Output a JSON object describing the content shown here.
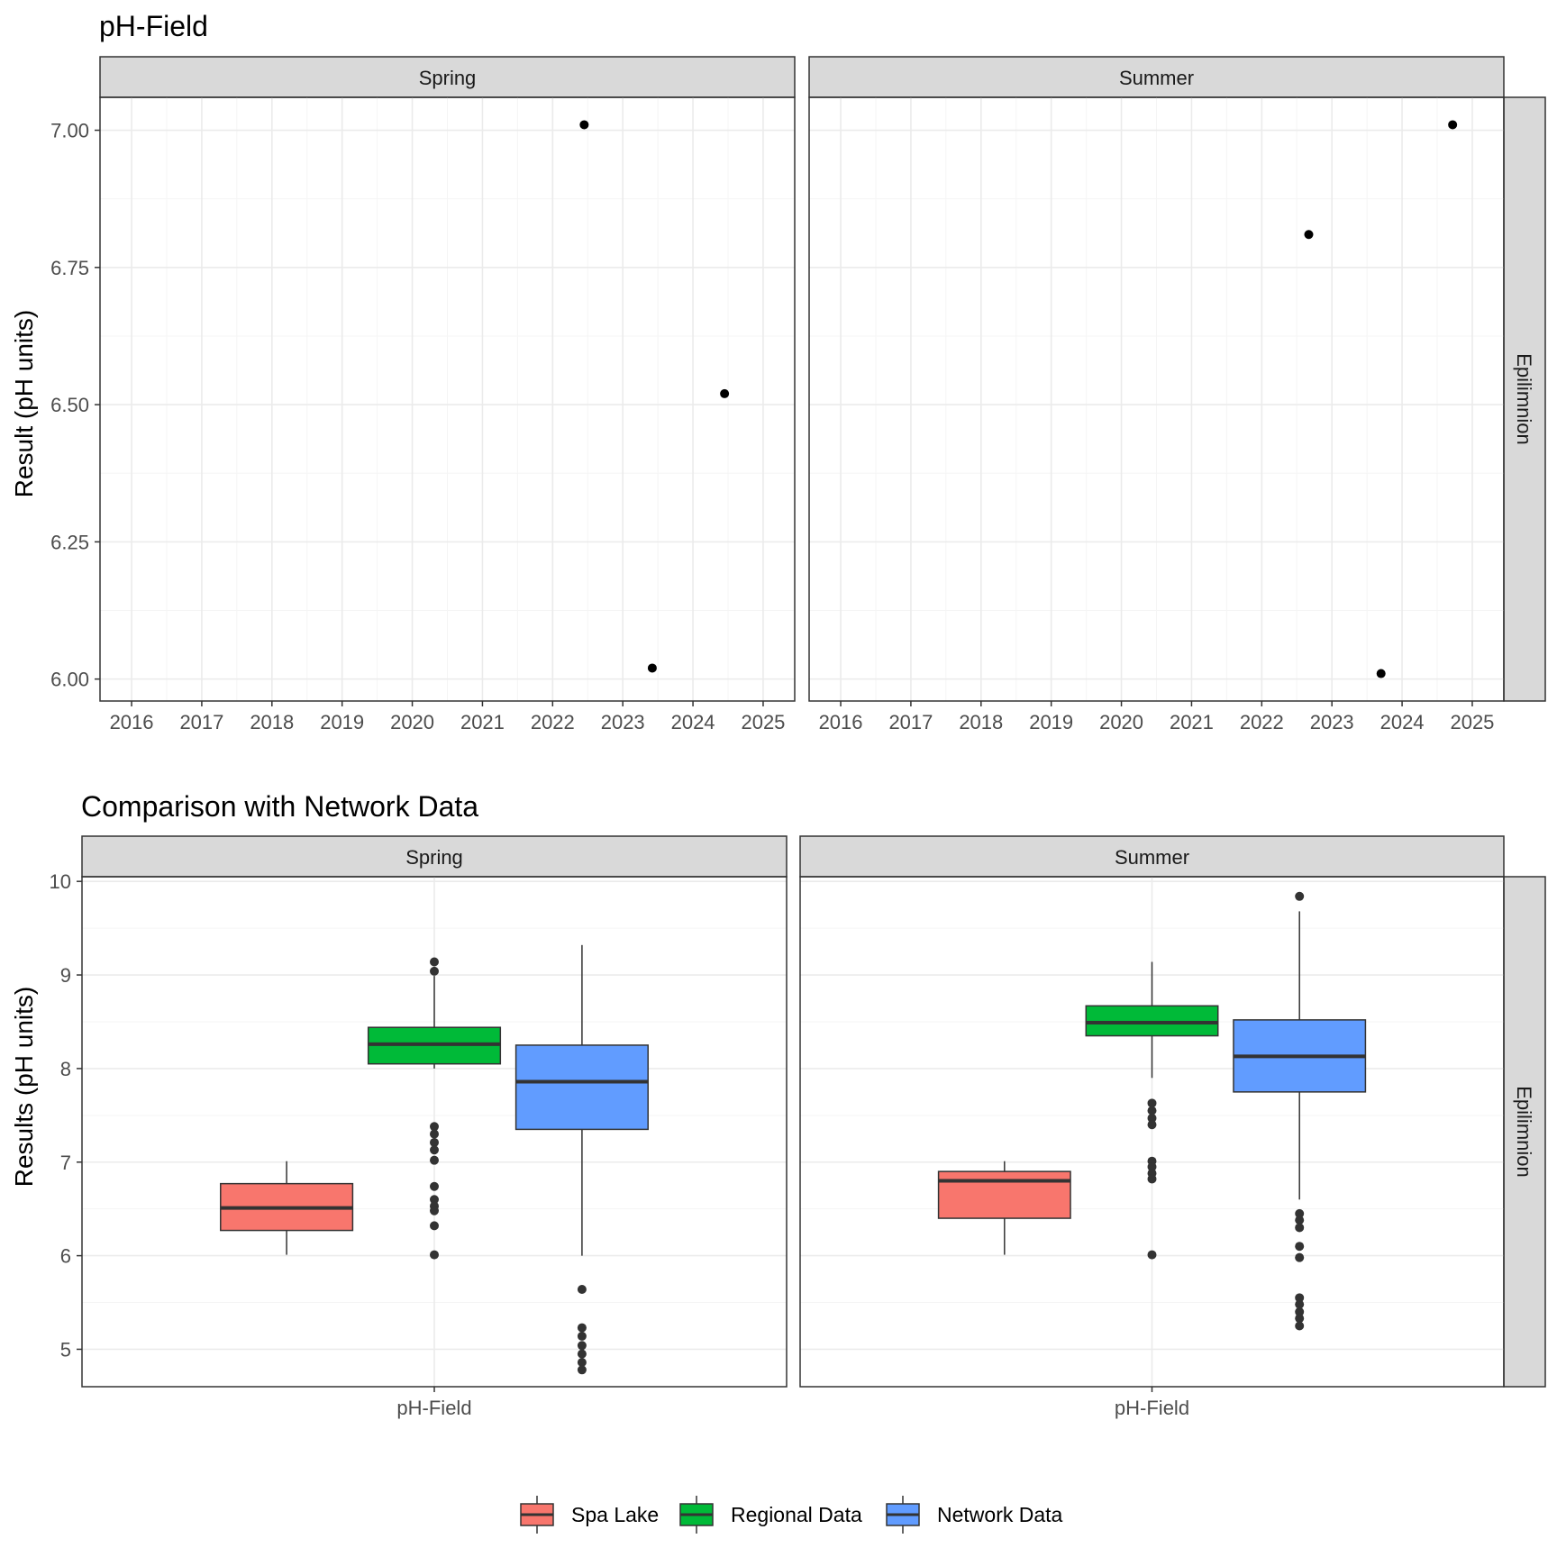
{
  "colors": {
    "strip_bg": "#d9d9d9",
    "grid_major": "#ebebeb",
    "grid_minor": "#f5f5f5",
    "point": "#000000",
    "outlier": "#333333"
  },
  "chart_data": [
    {
      "type": "scatter",
      "title": "pH-Field",
      "ylabel": "Result (pH units)",
      "xlabel": "",
      "ylim": [
        5.96,
        7.06
      ],
      "xlim": [
        2015.55,
        2025.45
      ],
      "x_ticks": [
        2016,
        2017,
        2018,
        2019,
        2020,
        2021,
        2022,
        2023,
        2024,
        2025
      ],
      "x_tick_labels": [
        "2016",
        "2017",
        "2018",
        "2019",
        "2020",
        "2021",
        "2022",
        "2023",
        "2024",
        "2025"
      ],
      "y_ticks": [
        6.0,
        6.25,
        6.5,
        6.75,
        7.0
      ],
      "y_tick_labels": [
        "6.00",
        "6.25",
        "6.50",
        "6.75",
        "7.00"
      ],
      "row_strip": "Epilimnion",
      "grid": true,
      "panels": [
        {
          "strip": "Spring",
          "points": [
            {
              "x": 2022.45,
              "y": 7.01
            },
            {
              "x": 2023.42,
              "y": 6.02
            },
            {
              "x": 2024.45,
              "y": 6.52
            }
          ]
        },
        {
          "strip": "Summer",
          "points": [
            {
              "x": 2022.67,
              "y": 6.81
            },
            {
              "x": 2023.7,
              "y": 6.01
            },
            {
              "x": 2024.72,
              "y": 7.01
            }
          ]
        }
      ]
    },
    {
      "type": "box",
      "title": "Comparison with Network Data",
      "ylabel": "Results (pH units)",
      "xlabel": "",
      "ylim": [
        4.6,
        10.05
      ],
      "y_ticks": [
        5,
        6,
        7,
        8,
        9,
        10
      ],
      "y_tick_labels": [
        "5",
        "6",
        "7",
        "8",
        "9",
        "10"
      ],
      "x_category": "pH-Field",
      "row_strip": "Epilimnion",
      "grid": true,
      "legend_position": "bottom",
      "series": [
        {
          "name": "Spa Lake",
          "color": "#f8766d"
        },
        {
          "name": "Regional Data",
          "color": "#00ba38"
        },
        {
          "name": "Network Data",
          "color": "#619cff"
        }
      ],
      "panels": [
        {
          "strip": "Spring",
          "boxes": [
            {
              "series": "Spa Lake",
              "min": 6.01,
              "q1": 6.27,
              "median": 6.51,
              "q3": 6.77,
              "max": 7.01,
              "outliers": []
            },
            {
              "series": "Regional Data",
              "min": 8.0,
              "q1": 8.05,
              "median": 8.26,
              "q3": 8.44,
              "max": 8.99,
              "outliers": [
                9.04,
                9.14,
                7.38,
                7.3,
                7.21,
                7.13,
                7.02,
                6.74,
                6.6,
                6.53,
                6.48,
                6.32,
                6.01
              ]
            },
            {
              "series": "Network Data",
              "min": 6.0,
              "q1": 7.35,
              "median": 7.86,
              "q3": 8.25,
              "max": 9.32,
              "outliers": [
                5.64,
                5.23,
                5.14,
                5.04,
                4.95,
                4.86,
                4.78
              ]
            }
          ]
        },
        {
          "strip": "Summer",
          "boxes": [
            {
              "series": "Spa Lake",
              "min": 6.01,
              "q1": 6.4,
              "median": 6.8,
              "q3": 6.9,
              "max": 7.01,
              "outliers": []
            },
            {
              "series": "Regional Data",
              "min": 7.9,
              "q1": 8.35,
              "median": 8.49,
              "q3": 8.67,
              "max": 9.14,
              "outliers": [
                7.63,
                7.55,
                7.47,
                7.4,
                7.01,
                6.95,
                6.88,
                6.82,
                6.01
              ]
            },
            {
              "series": "Network Data",
              "min": 6.6,
              "q1": 7.75,
              "median": 8.13,
              "q3": 8.52,
              "max": 9.68,
              "outliers": [
                9.84,
                6.45,
                6.38,
                6.3,
                6.1,
                5.98,
                5.55,
                5.48,
                5.4,
                5.33,
                5.25
              ]
            }
          ]
        }
      ]
    }
  ]
}
